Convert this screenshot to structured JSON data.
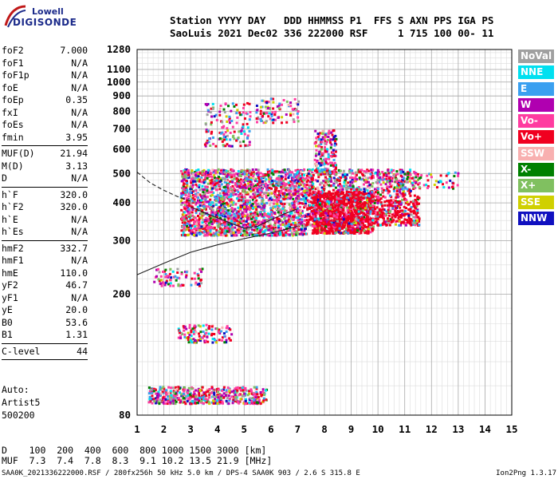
{
  "logo": {
    "line1": "Lowell",
    "line2": "DIGISONDE"
  },
  "header": {
    "line1": "Station YYYY DAY   DDD HHMMSS P1  FFS S AXN PPS IGA PS",
    "line2": "SaoLuis 2021 Dec02 336 222000 RSF     1 715 100 00- 11"
  },
  "params": [
    {
      "k": "foF2",
      "v": "7.000"
    },
    {
      "k": "foF1",
      "v": "N/A"
    },
    {
      "k": "foF1p",
      "v": "N/A"
    },
    {
      "k": "foE",
      "v": "N/A"
    },
    {
      "k": "foEp",
      "v": "0.35"
    },
    {
      "k": "fxI",
      "v": "N/A"
    },
    {
      "k": "foEs",
      "v": "N/A"
    },
    {
      "k": "fmin",
      "v": "3.95",
      "sep": true
    },
    {
      "k": "MUF(D)",
      "v": "21.94"
    },
    {
      "k": "M(D)",
      "v": "3.13"
    },
    {
      "k": "D",
      "v": "N/A",
      "sep": true
    },
    {
      "k": "h`F",
      "v": "320.0"
    },
    {
      "k": "h`F2",
      "v": "320.0"
    },
    {
      "k": "h`E",
      "v": "N/A"
    },
    {
      "k": "h`Es",
      "v": "N/A",
      "sep": true
    },
    {
      "k": "hmF2",
      "v": "332.7"
    },
    {
      "k": "hmF1",
      "v": "N/A"
    },
    {
      "k": "hmE",
      "v": "110.0"
    },
    {
      "k": "yF2",
      "v": "46.7"
    },
    {
      "k": "yF1",
      "v": "N/A"
    },
    {
      "k": "yE",
      "v": "20.0"
    },
    {
      "k": "B0",
      "v": "53.6"
    },
    {
      "k": "B1",
      "v": "1.31",
      "sep": true
    },
    {
      "k": "C-level",
      "v": "44",
      "sep": true
    }
  ],
  "auto": {
    "l1": "Auto:",
    "l2": "Artist5",
    "l3": "500200"
  },
  "legend": [
    {
      "label": "NoVal",
      "color": "#a0a0a0"
    },
    {
      "label": "NNE",
      "color": "#00e0f0"
    },
    {
      "label": "E",
      "color": "#3aa0f0"
    },
    {
      "label": "W",
      "color": "#b000b0"
    },
    {
      "label": "Vo-",
      "color": "#ff3ca0"
    },
    {
      "label": "Vo+",
      "color": "#f00020"
    },
    {
      "label": "SSW",
      "color": "#f8b0b0"
    },
    {
      "label": "X-",
      "color": "#008000"
    },
    {
      "label": "X+",
      "color": "#80c060"
    },
    {
      "label": "SSE",
      "color": "#d0d000"
    },
    {
      "label": "NNW",
      "color": "#1010c0"
    }
  ],
  "dmuf": {
    "d_line": "D    100  200  400  600  800 1000 1500 3000 [km]",
    "muf_line": "MUF  7.3  7.4  7.8  8.3  9.1 10.2 13.5 21.9 [MHz]"
  },
  "footer": {
    "left": "SAA0K_2021336222000.RSF / 280fx256h 50 kHz 5.0 km / DPS-4 SAA0K 903 / 2.6 S 315.8 E",
    "right": "Ion2Png 1.3.17"
  },
  "chart_data": {
    "type": "scatter",
    "title": "",
    "xlabel": "",
    "ylabel": "",
    "xlim": [
      1,
      15
    ],
    "ylim": [
      80,
      1280
    ],
    "x_ticks": [
      1,
      2,
      3,
      4,
      5,
      6,
      7,
      8,
      9,
      10,
      11,
      12,
      13,
      14,
      15
    ],
    "y_ticks": [
      80,
      200,
      300,
      400,
      500,
      600,
      700,
      800,
      900,
      1000,
      1100,
      1280
    ],
    "y_scale": "log",
    "grid": true,
    "series": [
      {
        "kind": "trace",
        "style": "solid",
        "x": [
          1,
          2,
          3,
          4,
          5,
          6,
          7
        ],
        "y": [
          232,
          253,
          275,
          291,
          305,
          318,
          335
        ]
      },
      {
        "kind": "trace",
        "style": "dashed",
        "x": [
          1,
          1.5,
          2,
          2.5,
          3
        ],
        "y": [
          505,
          465,
          440,
          420,
          405
        ]
      },
      {
        "kind": "trace",
        "style": "solid",
        "x": [
          3,
          3.5,
          4,
          4.5,
          5,
          5.5,
          6,
          6.5,
          7
        ],
        "y": [
          388,
          372,
          357,
          343,
          330,
          335,
          352,
          368,
          382
        ]
      }
    ],
    "echo_regions": [
      {
        "fx": [
          2.6,
          7.3
        ],
        "hy": [
          315,
          520
        ],
        "density": 2200
      },
      {
        "fx": [
          7.3,
          11.5
        ],
        "hy": [
          340,
          520
        ],
        "density": 1300
      },
      {
        "fx": [
          7.5,
          9.8
        ],
        "hy": [
          320,
          440
        ],
        "density": 900
      },
      {
        "fx": [
          7.6,
          8.4
        ],
        "hy": [
          500,
          700
        ],
        "density": 180
      },
      {
        "fx": [
          3.5,
          5.2
        ],
        "hy": [
          620,
          860
        ],
        "density": 140
      },
      {
        "fx": [
          5.4,
          7.0
        ],
        "hy": [
          740,
          890
        ],
        "density": 90
      },
      {
        "fx": [
          1.4,
          5.8
        ],
        "hy": [
          88,
          100
        ],
        "density": 500
      },
      {
        "fx": [
          2.5,
          4.5
        ],
        "hy": [
          140,
          160
        ],
        "density": 120
      },
      {
        "fx": [
          1.6,
          3.4
        ],
        "hy": [
          215,
          245
        ],
        "density": 80
      },
      {
        "fx": [
          11.5,
          13.0
        ],
        "hy": [
          450,
          510
        ],
        "density": 40
      }
    ]
  }
}
